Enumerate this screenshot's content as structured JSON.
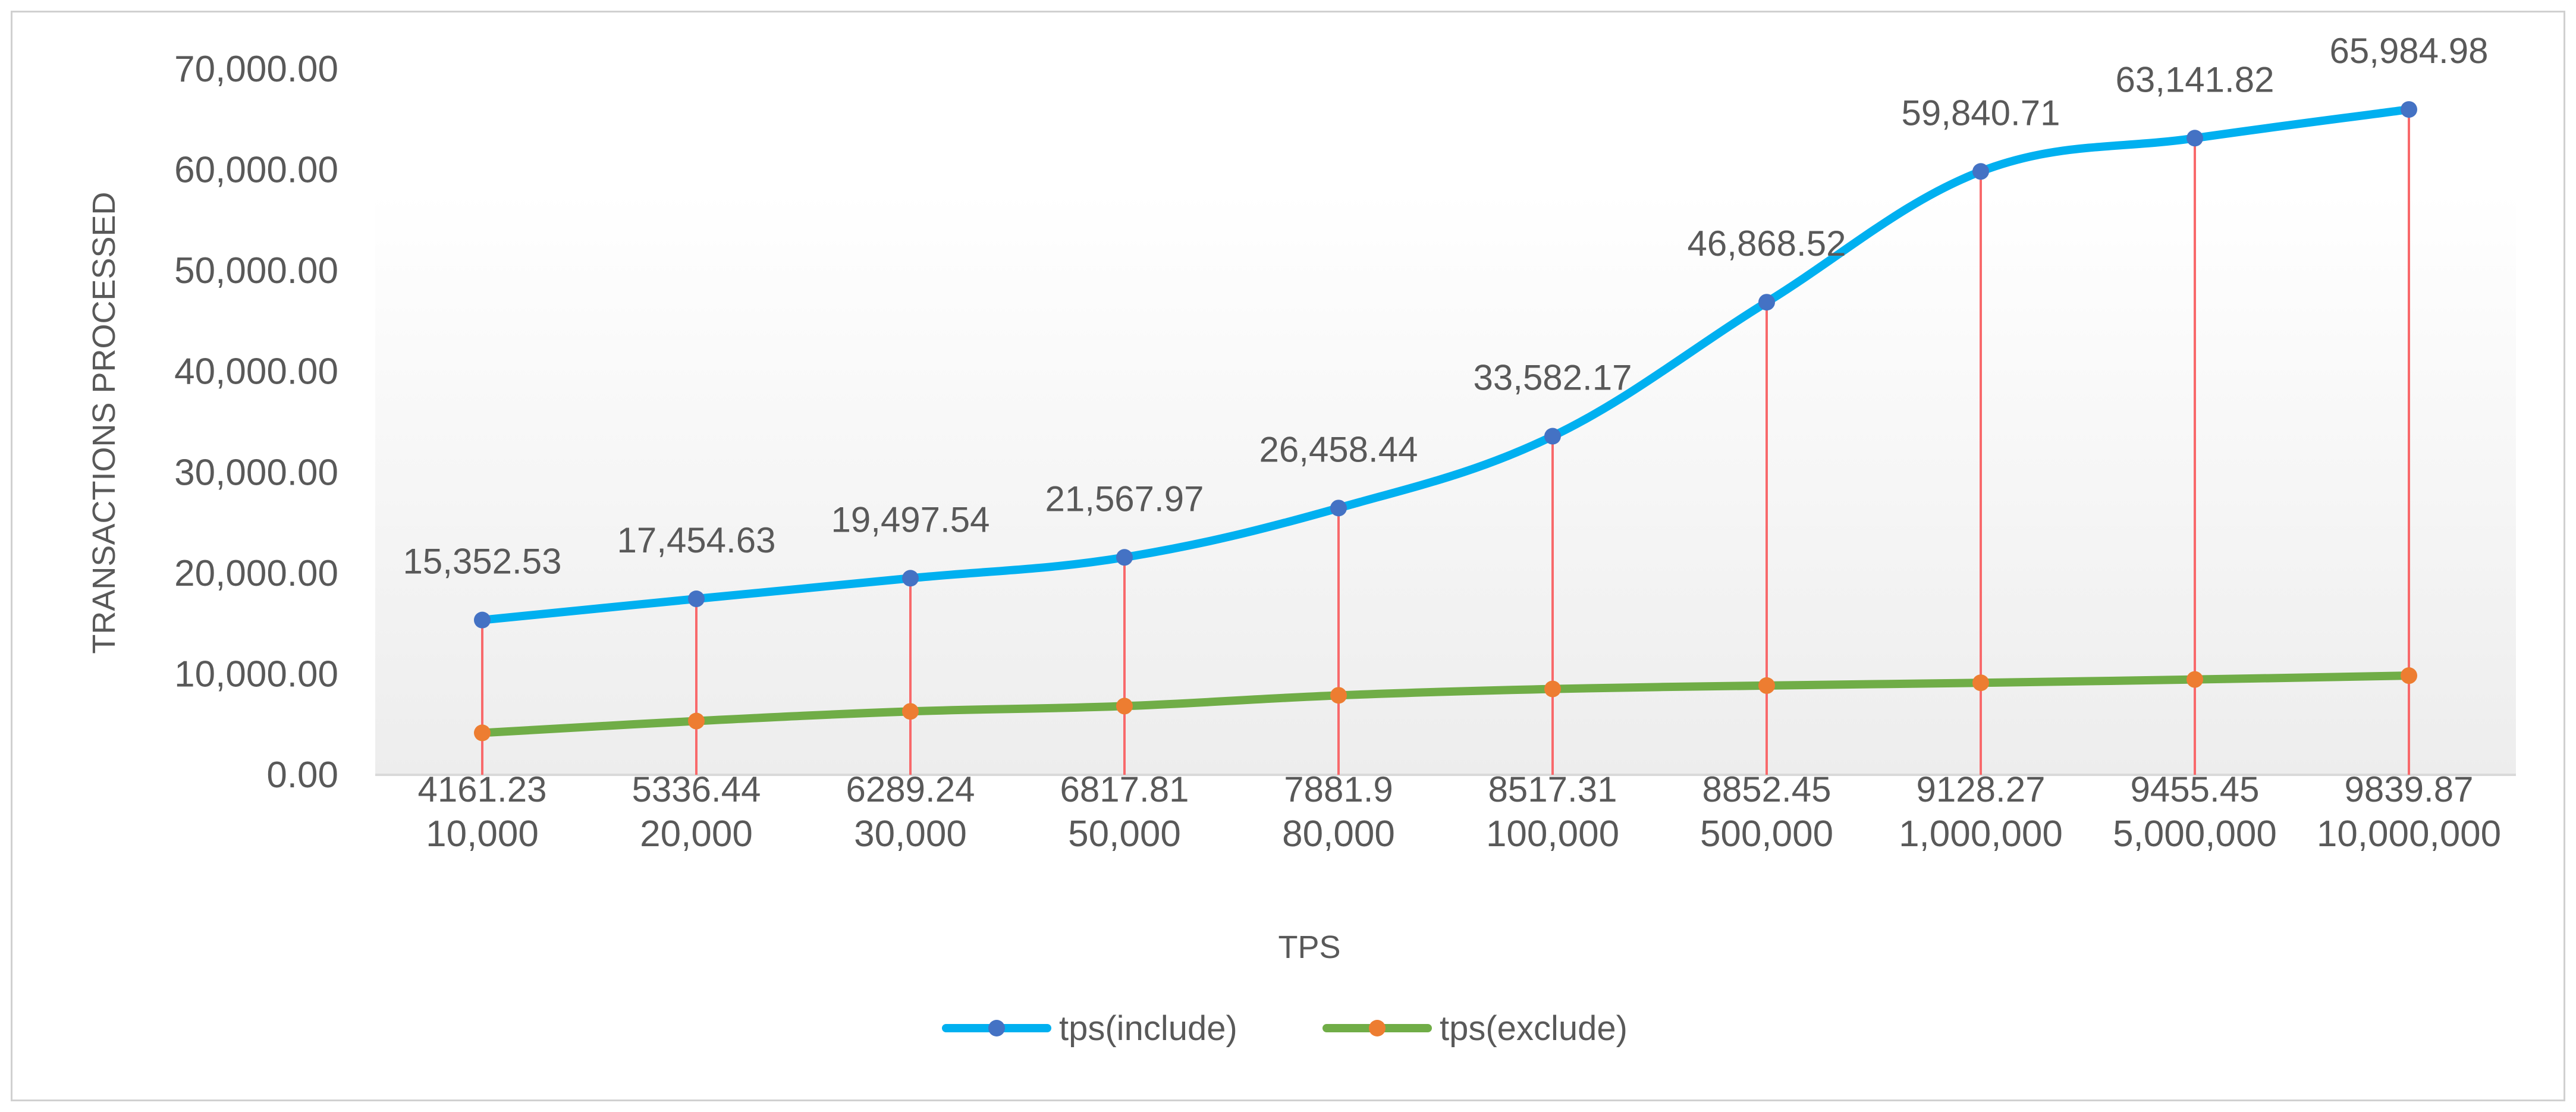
{
  "chart_data": {
    "type": "line",
    "title": "",
    "xlabel": "TPS",
    "ylabel": "TRANSACTIONS PROCESSED",
    "ylim": [
      0,
      70000
    ],
    "y_ticks": [
      "0.00",
      "10,000.00",
      "20,000.00",
      "30,000.00",
      "40,000.00",
      "50,000.00",
      "60,000.00",
      "70,000.00"
    ],
    "categories": [
      "10,000",
      "20,000",
      "30,000",
      "50,000",
      "80,000",
      "100,000",
      "500,000",
      "1,000,000",
      "5,000,000",
      "10,000,000"
    ],
    "grid": false,
    "legend": "bottom",
    "series": [
      {
        "name": "tps(include)",
        "values": [
          15352.53,
          17454.63,
          19497.54,
          21567.97,
          26458.44,
          33582.17,
          46868.52,
          59840.71,
          63141.82,
          65984.98
        ],
        "labels": [
          "15,352.53",
          "17,454.63",
          "19,497.54",
          "21,567.97",
          "26,458.44",
          "33,582.17",
          "46,868.52",
          "59,840.71",
          "63,141.82",
          "65,984.98"
        ],
        "line_color": "#00B0F0",
        "marker_color": "#4472C4"
      },
      {
        "name": "tps(exclude)",
        "values": [
          4161.23,
          5336.44,
          6289.24,
          6817.81,
          7881.9,
          8517.31,
          8852.45,
          9128.27,
          9455.45,
          9839.87
        ],
        "labels": [
          "4161.23",
          "5336.44",
          "6289.24",
          "6817.81",
          "7881.9",
          "8517.31",
          "8852.45",
          "9128.27",
          "9455.45",
          "9839.87"
        ],
        "line_color": "#70AD47",
        "marker_color": "#ED7D31"
      }
    ],
    "drop_line_color": "#F8696B"
  }
}
